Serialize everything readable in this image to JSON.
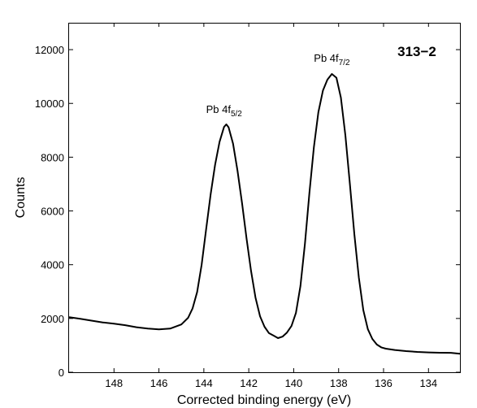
{
  "chart_data": {
    "type": "line",
    "title": "",
    "sample_label": "313−2",
    "xlabel": "Corrected binding energy (eV)",
    "ylabel": "Counts",
    "xlim": [
      150,
      132.6
    ],
    "ylim": [
      0,
      13000
    ],
    "x_reversed": true,
    "grid": false,
    "xticks": [
      148,
      146,
      144,
      142,
      140,
      138,
      136,
      134
    ],
    "yticks": [
      0,
      2000,
      4000,
      6000,
      8000,
      10000,
      12000
    ],
    "annotations": [
      {
        "base": "Pb 4f",
        "sub": "5/2",
        "x": 143.1,
        "y": 9650
      },
      {
        "base": "Pb 4f",
        "sub": "7/2",
        "x": 138.3,
        "y": 11550
      }
    ],
    "series": [
      {
        "color": "#000000",
        "x": [
          150.0,
          149.5,
          149.0,
          148.5,
          148.0,
          147.5,
          147.0,
          146.5,
          146.0,
          145.5,
          145.0,
          144.7,
          144.5,
          144.3,
          144.1,
          143.9,
          143.7,
          143.5,
          143.3,
          143.1,
          143.0,
          142.9,
          142.7,
          142.5,
          142.3,
          142.1,
          141.9,
          141.7,
          141.5,
          141.3,
          141.1,
          140.9,
          140.7,
          140.5,
          140.3,
          140.1,
          139.9,
          139.7,
          139.5,
          139.3,
          139.1,
          138.9,
          138.7,
          138.5,
          138.3,
          138.1,
          137.9,
          137.7,
          137.5,
          137.3,
          137.1,
          136.9,
          136.7,
          136.5,
          136.3,
          136.1,
          135.9,
          135.5,
          135.0,
          134.5,
          134.0,
          133.5,
          133.0,
          132.6
        ],
        "y": [
          2050,
          1980,
          1900,
          1830,
          1780,
          1730,
          1660,
          1620,
          1600,
          1640,
          1800,
          2050,
          2400,
          3000,
          4000,
          5300,
          6600,
          7700,
          8550,
          9100,
          9200,
          9100,
          8500,
          7500,
          6300,
          5000,
          3800,
          2800,
          2100,
          1700,
          1450,
          1350,
          1250,
          1300,
          1450,
          1700,
          2200,
          3200,
          4800,
          6700,
          8400,
          9700,
          10500,
          10900,
          11100,
          10950,
          10200,
          8800,
          7000,
          5100,
          3500,
          2300,
          1600,
          1250,
          1050,
          950,
          900,
          850,
          800,
          760,
          730,
          710,
          700,
          690
        ]
      }
    ]
  }
}
